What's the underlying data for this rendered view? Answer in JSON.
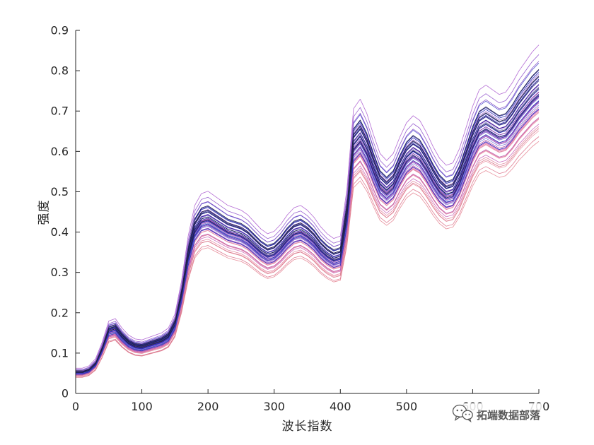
{
  "chart_data": {
    "type": "line",
    "title": "",
    "xlabel": "波长指数",
    "ylabel": "强度",
    "xlim": [
      0,
      700
    ],
    "ylim": [
      0,
      0.9
    ],
    "xticks": [
      0,
      100,
      200,
      300,
      400,
      500,
      600,
      700
    ],
    "yticks": [
      0,
      0.1,
      0.2,
      0.3,
      0.4,
      0.5,
      0.6,
      0.7,
      0.8,
      0.9
    ],
    "grid": false,
    "legend": "none",
    "axis_color": "#262626",
    "line_width": 0.8,
    "x": [
      0,
      10,
      20,
      30,
      40,
      50,
      60,
      70,
      80,
      90,
      100,
      110,
      120,
      130,
      140,
      150,
      160,
      170,
      180,
      190,
      200,
      210,
      220,
      230,
      240,
      250,
      260,
      270,
      280,
      290,
      300,
      310,
      320,
      330,
      340,
      350,
      360,
      370,
      380,
      390,
      400,
      410,
      420,
      430,
      440,
      450,
      460,
      470,
      480,
      490,
      500,
      510,
      520,
      530,
      540,
      550,
      560,
      570,
      580,
      590,
      600,
      610,
      620,
      630,
      640,
      650,
      660,
      670,
      680,
      690,
      700
    ],
    "base_curve": [
      0.05,
      0.05,
      0.055,
      0.07,
      0.105,
      0.15,
      0.155,
      0.135,
      0.12,
      0.112,
      0.11,
      0.115,
      0.12,
      0.125,
      0.135,
      0.165,
      0.235,
      0.33,
      0.395,
      0.42,
      0.425,
      0.415,
      0.405,
      0.395,
      0.39,
      0.385,
      0.375,
      0.36,
      0.345,
      0.335,
      0.34,
      0.355,
      0.375,
      0.39,
      0.395,
      0.385,
      0.37,
      0.35,
      0.335,
      0.325,
      0.33,
      0.43,
      0.6,
      0.62,
      0.59,
      0.545,
      0.505,
      0.49,
      0.505,
      0.54,
      0.57,
      0.585,
      0.575,
      0.55,
      0.52,
      0.495,
      0.48,
      0.485,
      0.515,
      0.56,
      0.605,
      0.64,
      0.65,
      0.64,
      0.63,
      0.635,
      0.655,
      0.68,
      0.7,
      0.72,
      0.735
    ],
    "lines": [
      {
        "scale": 0.85,
        "offset": 0.0,
        "color": "#e8909c"
      },
      {
        "scale": 0.87,
        "offset": -0.003,
        "color": "#e07f95"
      },
      {
        "scale": 0.88,
        "offset": 0.004,
        "color": "#ef9fae"
      },
      {
        "scale": 0.9,
        "offset": 0.0,
        "color": "#e58fa8"
      },
      {
        "scale": 0.9,
        "offset": -0.005,
        "color": "#d97b8e"
      },
      {
        "scale": 0.92,
        "offset": 0.003,
        "color": "#ee9bb5"
      },
      {
        "scale": 0.93,
        "offset": -0.002,
        "color": "#e186a3"
      },
      {
        "scale": 0.94,
        "offset": 0.005,
        "color": "#f0a5c0"
      },
      {
        "scale": 0.95,
        "offset": 0.0,
        "color": "#db7f9b"
      },
      {
        "scale": 0.96,
        "offset": -0.004,
        "color": "#e992ae"
      },
      {
        "scale": 0.9,
        "offset": 0.006,
        "color": "#cc6fbe"
      },
      {
        "scale": 0.93,
        "offset": 0.0,
        "color": "#c05fb2"
      },
      {
        "scale": 0.95,
        "offset": 0.004,
        "color": "#d276c6"
      },
      {
        "scale": 0.97,
        "offset": -0.003,
        "color": "#b958ab"
      },
      {
        "scale": 0.98,
        "offset": 0.002,
        "color": "#c967ba"
      },
      {
        "scale": 1.0,
        "offset": 0.0,
        "color": "#cb72c4"
      },
      {
        "scale": 1.01,
        "offset": 0.004,
        "color": "#bd5cb0"
      },
      {
        "scale": 1.02,
        "offset": -0.002,
        "color": "#d27fca"
      },
      {
        "scale": 1.04,
        "offset": 0.0,
        "color": "#c468b8"
      },
      {
        "scale": 0.95,
        "offset": 0.006,
        "color": "#9a5ccc"
      },
      {
        "scale": 0.98,
        "offset": 0.0,
        "color": "#8a4cc0"
      },
      {
        "scale": 1.0,
        "offset": 0.003,
        "color": "#a066d2"
      },
      {
        "scale": 1.02,
        "offset": -0.002,
        "color": "#7d46b8"
      },
      {
        "scale": 1.04,
        "offset": 0.002,
        "color": "#9458ca"
      },
      {
        "scale": 1.06,
        "offset": 0.0,
        "color": "#8850c4"
      },
      {
        "scale": 1.08,
        "offset": -0.003,
        "color": "#a46ad6"
      },
      {
        "scale": 0.97,
        "offset": 0.002,
        "color": "#8080d8"
      },
      {
        "scale": 1.0,
        "offset": -0.002,
        "color": "#7070d0"
      },
      {
        "scale": 1.03,
        "offset": 0.003,
        "color": "#9090e0"
      },
      {
        "scale": 0.96,
        "offset": 0.0,
        "color": "#3333bb"
      },
      {
        "scale": 0.98,
        "offset": 0.004,
        "color": "#2a2ab0"
      },
      {
        "scale": 0.99,
        "offset": -0.002,
        "color": "#4444c4"
      },
      {
        "scale": 1.0,
        "offset": 0.002,
        "color": "#2222a8"
      },
      {
        "scale": 1.01,
        "offset": 0.0,
        "color": "#3a3ac0"
      },
      {
        "scale": 1.02,
        "offset": 0.004,
        "color": "#1f1f9e"
      },
      {
        "scale": 1.03,
        "offset": -0.003,
        "color": "#2e2eb6"
      },
      {
        "scale": 1.04,
        "offset": 0.001,
        "color": "#26269f"
      },
      {
        "scale": 1.05,
        "offset": 0.003,
        "color": "#3c3cc8"
      },
      {
        "scale": 1.06,
        "offset": 0.0,
        "color": "#2929ad"
      },
      {
        "scale": 1.07,
        "offset": -0.002,
        "color": "#343498"
      },
      {
        "scale": 1.08,
        "offset": 0.002,
        "color": "#2525b4"
      },
      {
        "scale": 1.09,
        "offset": 0.0,
        "color": "#30309f"
      },
      {
        "scale": 1.0,
        "offset": 0.005,
        "color": "#26264d"
      },
      {
        "scale": 1.03,
        "offset": 0.0,
        "color": "#202045"
      },
      {
        "scale": 1.05,
        "offset": 0.004,
        "color": "#2b2b55"
      },
      {
        "scale": 1.07,
        "offset": 0.0,
        "color": "#1c1c3e"
      },
      {
        "scale": 1.09,
        "offset": 0.002,
        "color": "#252550"
      },
      {
        "scale": 1.11,
        "offset": 0.003,
        "color": "#5a5ad2"
      },
      {
        "scale": 1.12,
        "offset": 0.0,
        "color": "#8c59c9"
      },
      {
        "scale": 1.14,
        "offset": 0.002,
        "color": "#9a62d0"
      },
      {
        "scale": 1.17,
        "offset": 0.004,
        "color": "#b36bd4"
      }
    ]
  },
  "watermark": {
    "text": "拓端数据部落",
    "color": "#595959"
  }
}
